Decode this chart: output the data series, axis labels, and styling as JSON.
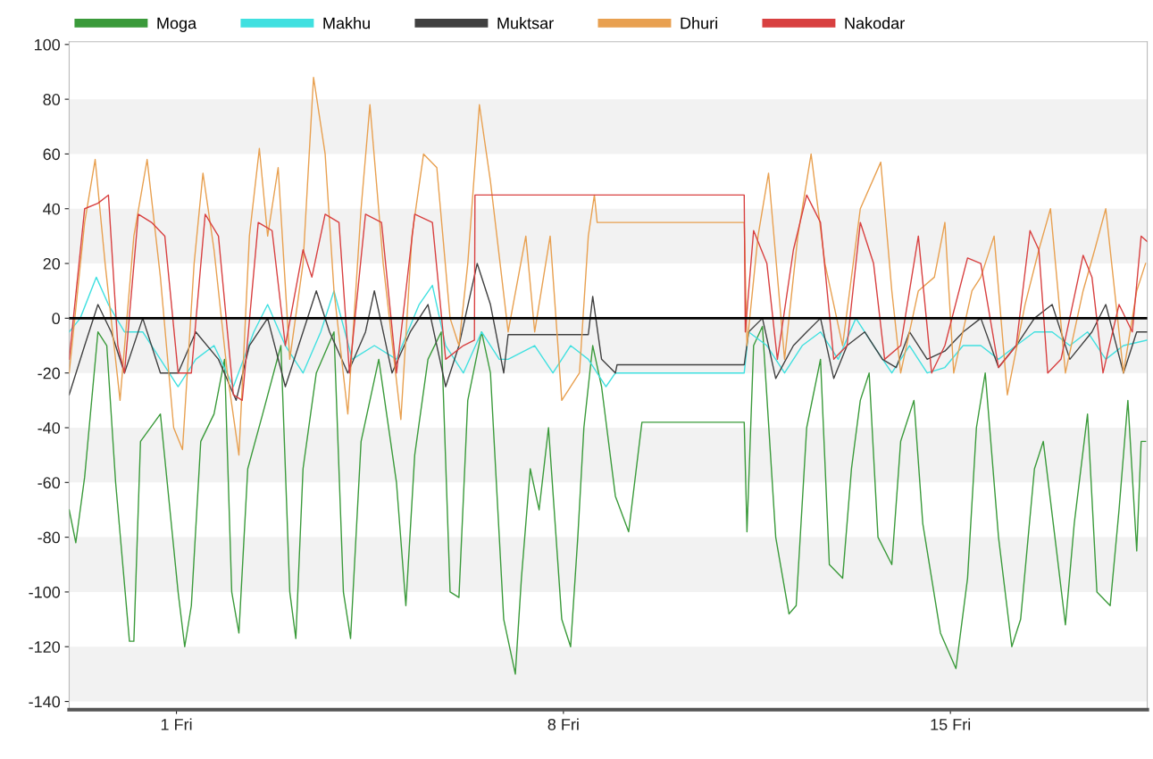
{
  "chart_data": {
    "type": "line",
    "legend": "top",
    "bands": [
      {
        "axis": "y",
        "from": -140,
        "to": -120,
        "label": null,
        "color": "#f2f2f2"
      },
      {
        "axis": "y",
        "from": -100,
        "to": -80,
        "label": null,
        "color": "#f2f2f2"
      },
      {
        "axis": "y",
        "from": -60,
        "to": -40,
        "label": null,
        "color": "#f2f2f2"
      },
      {
        "axis": "y",
        "from": -20,
        "to": 0,
        "label": null,
        "color": "#f2f2f2"
      },
      {
        "axis": "y",
        "from": 20,
        "to": 40,
        "label": null,
        "color": "#f2f2f2"
      },
      {
        "axis": "y",
        "from": 60,
        "to": 80,
        "label": null,
        "color": "#f2f2f2"
      }
    ],
    "xlim": [
      -0.94,
      18.56
    ],
    "ylim": [
      -143,
      101
    ],
    "xticks": [
      {
        "value": 1,
        "label": "1 Fri"
      },
      {
        "value": 8,
        "label": "8 Fri"
      },
      {
        "value": 15,
        "label": "15 Fri"
      }
    ],
    "yticks": [
      -140,
      -120,
      -100,
      -80,
      -60,
      -40,
      -20,
      0,
      20,
      40,
      60,
      80,
      100
    ],
    "ref_lines": [
      {
        "axis": "y",
        "value": 0,
        "label": null,
        "color": "#000000"
      }
    ],
    "series": [
      {
        "name": "Moga",
        "color": "#3a9a3a",
        "x": [
          -0.94,
          -0.82,
          -0.66,
          -0.42,
          -0.26,
          -0.1,
          0.15,
          0.23,
          0.35,
          0.71,
          1.03,
          1.15,
          1.27,
          1.44,
          1.68,
          1.87,
          2.0,
          2.13,
          2.29,
          2.56,
          2.89,
          3.05,
          3.16,
          3.29,
          3.53,
          3.85,
          4.02,
          4.15,
          4.34,
          4.66,
          4.98,
          5.15,
          5.31,
          5.55,
          5.79,
          5.95,
          6.11,
          6.27,
          6.52,
          6.68,
          6.92,
          7.13,
          7.24,
          7.4,
          7.56,
          7.73,
          7.97,
          8.13,
          8.26,
          8.37,
          8.53,
          8.69,
          8.94,
          9.18,
          9.42,
          11.27,
          11.32,
          11.44,
          11.6,
          11.84,
          12.08,
          12.21,
          12.4,
          12.65,
          12.81,
          13.05,
          13.21,
          13.37,
          13.53,
          13.69,
          13.94,
          14.1,
          14.34,
          14.5,
          14.82,
          15.1,
          15.31,
          15.47,
          15.63,
          15.87,
          16.11,
          16.27,
          16.52,
          16.68,
          16.92,
          17.08,
          17.24,
          17.48,
          17.65,
          17.89,
          18.05,
          18.21,
          18.37,
          18.45,
          18.53
        ],
        "values": [
          -70,
          -82,
          -58,
          -5,
          -10,
          -60,
          -118,
          -118,
          -45,
          -35,
          -100,
          -120,
          -105,
          -45,
          -35,
          -15,
          -100,
          -115,
          -55,
          -35,
          -10,
          -100,
          -117,
          -55,
          -20,
          -5,
          -100,
          -117,
          -45,
          -15,
          -60,
          -105,
          -50,
          -15,
          -5,
          -100,
          -102,
          -30,
          -5,
          -20,
          -110,
          -130,
          -95,
          -55,
          -70,
          -40,
          -110,
          -120,
          -80,
          -40,
          -10,
          -25,
          -65,
          -78,
          -38,
          -38,
          -78,
          -10,
          -3,
          -80,
          -108,
          -105,
          -40,
          -15,
          -90,
          -95,
          -55,
          -30,
          -20,
          -80,
          -90,
          -45,
          -30,
          -75,
          -115,
          -128,
          -95,
          -40,
          -20,
          -80,
          -120,
          -110,
          -55,
          -45,
          -85,
          -112,
          -75,
          -35,
          -100,
          -105,
          -70,
          -30,
          -85,
          -45,
          -45
        ]
      },
      {
        "name": "Makhu",
        "color": "#40e0e0",
        "x": [
          -0.94,
          -0.74,
          -0.45,
          -0.23,
          0.06,
          0.39,
          0.71,
          1.03,
          1.35,
          1.68,
          2.03,
          2.4,
          2.65,
          2.97,
          3.29,
          3.61,
          3.85,
          4.18,
          4.58,
          4.98,
          5.39,
          5.63,
          5.87,
          6.19,
          6.52,
          6.84,
          7.0,
          7.48,
          7.81,
          8.13,
          8.45,
          8.77,
          8.94,
          11.27,
          11.35,
          11.68,
          12.0,
          12.32,
          12.65,
          12.97,
          13.29,
          13.61,
          13.94,
          14.26,
          14.58,
          14.9,
          15.23,
          15.55,
          15.87,
          16.19,
          16.52,
          16.84,
          17.16,
          17.48,
          17.81,
          18.13,
          18.56
        ],
        "values": [
          -5,
          0,
          15,
          5,
          -5,
          -5,
          -15,
          -25,
          -15,
          -10,
          -25,
          -5,
          5,
          -10,
          -20,
          -5,
          10,
          -15,
          -10,
          -15,
          5,
          12,
          -10,
          -20,
          -5,
          -15,
          -15,
          -10,
          -20,
          -10,
          -15,
          -25,
          -20,
          -20,
          -5,
          -10,
          -20,
          -10,
          -5,
          -15,
          0,
          -10,
          -20,
          -10,
          -20,
          -18,
          -10,
          -10,
          -15,
          -10,
          -5,
          -5,
          -10,
          -5,
          -15,
          -10,
          -8
        ]
      },
      {
        "name": "Muktsar",
        "color": "#404040",
        "x": [
          -0.94,
          -0.66,
          -0.42,
          -0.18,
          0.06,
          0.39,
          0.71,
          1.03,
          1.35,
          1.76,
          2.08,
          2.32,
          2.65,
          2.97,
          3.29,
          3.53,
          3.77,
          4.1,
          4.42,
          4.58,
          4.9,
          5.23,
          5.55,
          5.87,
          6.11,
          6.44,
          6.68,
          6.92,
          7.0,
          8.45,
          8.53,
          8.69,
          8.94,
          8.97,
          11.27,
          11.35,
          11.6,
          11.84,
          12.16,
          12.4,
          12.65,
          12.89,
          13.13,
          13.45,
          13.77,
          14.02,
          14.26,
          14.58,
          14.9,
          15.23,
          15.55,
          15.87,
          16.19,
          16.52,
          16.84,
          17.16,
          17.56,
          17.81,
          18.13,
          18.37,
          18.56
        ],
        "values": [
          -28,
          -10,
          5,
          -5,
          -20,
          0,
          -20,
          -20,
          -5,
          -15,
          -30,
          -10,
          0,
          -25,
          -5,
          10,
          -5,
          -20,
          -5,
          10,
          -20,
          -5,
          5,
          -25,
          -10,
          20,
          5,
          -20,
          -6,
          -6,
          8,
          -15,
          -20,
          -17,
          -17,
          -5,
          0,
          -22,
          -10,
          -5,
          0,
          -22,
          -10,
          -5,
          -15,
          -18,
          -5,
          -15,
          -12,
          -5,
          0,
          -18,
          -10,
          0,
          5,
          -15,
          -5,
          5,
          -20,
          -5,
          -5
        ]
      },
      {
        "name": "Dhuri",
        "color": "#e8a050",
        "x": [
          -0.94,
          -0.66,
          -0.47,
          -0.29,
          -0.02,
          0.23,
          0.47,
          0.71,
          0.95,
          1.11,
          1.32,
          1.48,
          1.68,
          1.92,
          2.13,
          2.32,
          2.5,
          2.65,
          2.84,
          3.05,
          3.29,
          3.48,
          3.69,
          3.85,
          4.1,
          4.34,
          4.5,
          4.74,
          5.06,
          5.26,
          5.47,
          5.71,
          5.95,
          6.11,
          6.27,
          6.48,
          6.68,
          7.0,
          7.32,
          7.48,
          7.76,
          7.97,
          8.29,
          8.45,
          8.56,
          8.61,
          11.27,
          11.32,
          11.52,
          11.71,
          12.0,
          12.24,
          12.48,
          12.73,
          13.05,
          13.37,
          13.74,
          13.94,
          14.1,
          14.42,
          14.71,
          14.9,
          15.06,
          15.39,
          15.55,
          15.79,
          16.03,
          16.35,
          16.6,
          16.81,
          17.08,
          17.4,
          17.61,
          17.81,
          18.13,
          18.37,
          18.53
        ],
        "values": [
          -20,
          35,
          58,
          20,
          -30,
          30,
          58,
          15,
          -40,
          -48,
          20,
          53,
          25,
          -20,
          -50,
          30,
          62,
          30,
          55,
          -15,
          20,
          88,
          60,
          10,
          -35,
          40,
          78,
          20,
          -37,
          30,
          60,
          55,
          0,
          -10,
          20,
          78,
          50,
          -5,
          30,
          -5,
          30,
          -30,
          -20,
          30,
          45,
          35,
          35,
          -10,
          30,
          53,
          -15,
          30,
          60,
          20,
          -10,
          40,
          57,
          10,
          -20,
          10,
          15,
          35,
          -20,
          10,
          15,
          30,
          -28,
          5,
          25,
          40,
          -20,
          10,
          25,
          40,
          -20,
          10,
          20
        ]
      },
      {
        "name": "Nakodar",
        "color": "#d84040",
        "x": [
          -0.94,
          -0.66,
          -0.42,
          -0.23,
          -0.06,
          0.06,
          0.31,
          0.55,
          0.79,
          1.03,
          1.27,
          1.52,
          1.76,
          2.03,
          2.19,
          2.48,
          2.73,
          2.97,
          3.29,
          3.45,
          3.69,
          3.94,
          4.13,
          4.42,
          4.71,
          4.98,
          5.31,
          5.63,
          5.87,
          6.19,
          6.39,
          6.4,
          11.27,
          11.29,
          11.44,
          11.68,
          11.87,
          12.16,
          12.4,
          12.65,
          12.89,
          13.13,
          13.37,
          13.61,
          13.81,
          14.1,
          14.42,
          14.66,
          14.9,
          15.31,
          15.55,
          15.87,
          16.19,
          16.44,
          16.6,
          16.76,
          17.0,
          17.4,
          17.56,
          17.76,
          18.05,
          18.29,
          18.45,
          18.56
        ],
        "values": [
          -15,
          40,
          42,
          45,
          -10,
          -20,
          38,
          35,
          30,
          -20,
          -20,
          38,
          30,
          -28,
          -30,
          35,
          32,
          -10,
          25,
          15,
          38,
          35,
          -20,
          38,
          35,
          -20,
          38,
          35,
          -15,
          -10,
          -8,
          45,
          45,
          -5,
          32,
          20,
          -15,
          25,
          45,
          35,
          -15,
          -10,
          35,
          20,
          -15,
          -10,
          30,
          -20,
          -10,
          22,
          20,
          -18,
          -10,
          32,
          25,
          -20,
          -15,
          23,
          15,
          -20,
          5,
          -5,
          30,
          28
        ]
      }
    ]
  }
}
